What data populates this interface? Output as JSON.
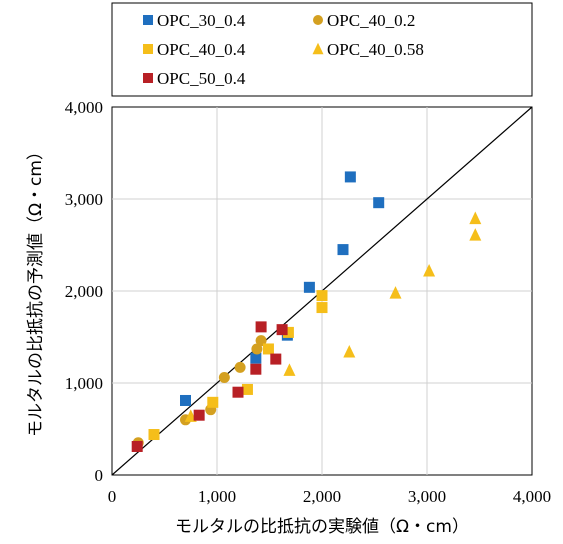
{
  "chart_data": {
    "type": "scatter",
    "xlabel": "モルタルの比抵抗の実験値（Ω・cm）",
    "ylabel": "モルタルの比抵抗の予測値（Ω・cm）",
    "xlim": [
      0,
      4000
    ],
    "ylim": [
      0,
      4000
    ],
    "x_ticks": [
      "0",
      "1,000",
      "2,000",
      "3,000",
      "4,000"
    ],
    "y_ticks": [
      "0",
      "1,000",
      "2,000",
      "3,000",
      "4,000"
    ],
    "grid": true,
    "reference_line": "y = x",
    "legend_position": "top, above plot",
    "series": [
      {
        "name": "OPC_30_0.4",
        "marker": "square",
        "color": "#1F6FBF",
        "points": [
          [
            700,
            810
          ],
          [
            1370,
            1270
          ],
          [
            1670,
            1520
          ],
          [
            1880,
            2040
          ],
          [
            2200,
            2450
          ],
          [
            2270,
            3240
          ],
          [
            2540,
            2960
          ]
        ]
      },
      {
        "name": "OPC_40_0.2",
        "marker": "circle",
        "color": "#D4A020",
        "points": [
          [
            250,
            350
          ],
          [
            700,
            600
          ],
          [
            940,
            710
          ],
          [
            1070,
            1060
          ],
          [
            1220,
            1170
          ],
          [
            1380,
            1370
          ],
          [
            1420,
            1460
          ]
        ]
      },
      {
        "name": "OPC_40_0.4",
        "marker": "square",
        "color": "#F5BE1A",
        "points": [
          [
            400,
            440
          ],
          [
            960,
            790
          ],
          [
            1290,
            930
          ],
          [
            1490,
            1370
          ],
          [
            1680,
            1550
          ],
          [
            2000,
            1950
          ],
          [
            2000,
            1820
          ]
        ]
      },
      {
        "name": "OPC_40_0.58",
        "marker": "triangle",
        "color": "#F5BE1A",
        "points": [
          [
            750,
            640
          ],
          [
            1690,
            1140
          ],
          [
            2260,
            1340
          ],
          [
            2700,
            1980
          ],
          [
            3020,
            2220
          ],
          [
            3460,
            2790
          ],
          [
            3460,
            2610
          ]
        ]
      },
      {
        "name": "OPC_50_0.4",
        "marker": "square",
        "color": "#B82025",
        "points": [
          [
            240,
            310
          ],
          [
            830,
            650
          ],
          [
            1200,
            900
          ],
          [
            1370,
            1150
          ],
          [
            1420,
            1610
          ],
          [
            1560,
            1260
          ],
          [
            1620,
            1580
          ]
        ]
      }
    ]
  }
}
